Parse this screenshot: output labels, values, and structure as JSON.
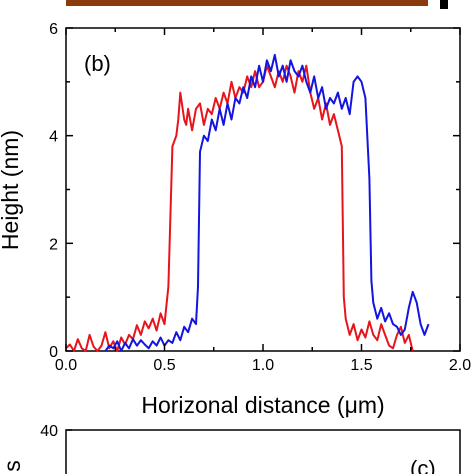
{
  "chart_data": [
    {
      "type": "line",
      "panel_label": "(b)",
      "xlabel": "Horizonal distance (μm)",
      "ylabel": "Height (nm)",
      "xlim": [
        0.0,
        2.0
      ],
      "ylim": [
        0,
        6
      ],
      "x_ticks": [
        "0.0",
        "0.5",
        "1.0",
        "1.5",
        "2.0"
      ],
      "y_ticks": [
        "0",
        "2",
        "4",
        "6"
      ],
      "grid": false,
      "series": [
        {
          "color": "#e8141c",
          "x": [
            0.0,
            0.02,
            0.04,
            0.06,
            0.08,
            0.1,
            0.12,
            0.14,
            0.16,
            0.18,
            0.2,
            0.22,
            0.24,
            0.26,
            0.28,
            0.3,
            0.32,
            0.34,
            0.36,
            0.38,
            0.4,
            0.42,
            0.44,
            0.46,
            0.48,
            0.5,
            0.52,
            0.54,
            0.56,
            0.57,
            0.58,
            0.6,
            0.61,
            0.62,
            0.64,
            0.66,
            0.68,
            0.7,
            0.72,
            0.74,
            0.76,
            0.78,
            0.8,
            0.82,
            0.84,
            0.86,
            0.88,
            0.9,
            0.92,
            0.94,
            0.96,
            0.98,
            1.0,
            1.02,
            1.04,
            1.06,
            1.08,
            1.1,
            1.12,
            1.14,
            1.16,
            1.18,
            1.2,
            1.22,
            1.24,
            1.26,
            1.28,
            1.3,
            1.32,
            1.34,
            1.36,
            1.38,
            1.4,
            1.41,
            1.42,
            1.44,
            1.46,
            1.48,
            1.5,
            1.52,
            1.54,
            1.56,
            1.58,
            1.6,
            1.62,
            1.64,
            1.66,
            1.68,
            1.7,
            1.72,
            1.74,
            1.76
          ],
          "y": [
            0.05,
            0.12,
            0.0,
            0.22,
            0.05,
            0.0,
            0.3,
            0.08,
            0.0,
            0.1,
            0.35,
            0.05,
            0.18,
            0.0,
            0.25,
            0.12,
            0.3,
            0.22,
            0.48,
            0.3,
            0.55,
            0.42,
            0.6,
            0.38,
            0.7,
            0.5,
            1.2,
            3.8,
            4.0,
            4.3,
            4.8,
            4.3,
            4.2,
            4.5,
            4.1,
            4.5,
            4.6,
            4.2,
            4.5,
            4.4,
            4.7,
            4.5,
            4.8,
            4.6,
            5.0,
            4.7,
            4.9,
            4.8,
            5.1,
            4.9,
            5.2,
            4.9,
            5.0,
            5.3,
            5.1,
            4.9,
            5.2,
            5.0,
            5.3,
            5.1,
            4.8,
            5.2,
            5.0,
            5.3,
            4.8,
            4.5,
            4.7,
            4.3,
            4.6,
            4.2,
            4.4,
            4.1,
            3.8,
            1.0,
            0.6,
            0.3,
            0.5,
            0.2,
            0.4,
            0.25,
            0.55,
            0.3,
            0.2,
            0.5,
            0.3,
            0.1,
            0.05,
            0.3,
            0.45,
            0.15,
            0.3,
            0.0
          ]
        },
        {
          "color": "#1414e0",
          "x": [
            0.2,
            0.22,
            0.24,
            0.26,
            0.28,
            0.3,
            0.32,
            0.34,
            0.36,
            0.38,
            0.4,
            0.42,
            0.44,
            0.46,
            0.48,
            0.5,
            0.52,
            0.54,
            0.56,
            0.58,
            0.6,
            0.62,
            0.64,
            0.66,
            0.67,
            0.68,
            0.7,
            0.72,
            0.74,
            0.76,
            0.78,
            0.8,
            0.82,
            0.84,
            0.86,
            0.88,
            0.9,
            0.92,
            0.94,
            0.96,
            0.98,
            1.0,
            1.02,
            1.04,
            1.06,
            1.08,
            1.1,
            1.12,
            1.14,
            1.16,
            1.18,
            1.2,
            1.22,
            1.24,
            1.26,
            1.28,
            1.3,
            1.32,
            1.34,
            1.36,
            1.38,
            1.4,
            1.42,
            1.44,
            1.46,
            1.48,
            1.5,
            1.52,
            1.54,
            1.55,
            1.56,
            1.58,
            1.6,
            1.62,
            1.64,
            1.66,
            1.68,
            1.7,
            1.72,
            1.74,
            1.76,
            1.78,
            1.8,
            1.82,
            1.84
          ],
          "y": [
            0.0,
            0.1,
            0.05,
            0.18,
            0.0,
            0.15,
            0.05,
            0.22,
            0.1,
            0.2,
            0.12,
            0.05,
            0.18,
            0.1,
            0.25,
            0.1,
            0.2,
            0.15,
            0.35,
            0.2,
            0.45,
            0.35,
            0.6,
            0.5,
            1.2,
            3.7,
            4.0,
            3.9,
            4.3,
            4.1,
            4.5,
            4.2,
            4.6,
            4.3,
            4.7,
            4.6,
            4.9,
            4.7,
            5.1,
            4.9,
            5.3,
            5.0,
            5.4,
            5.2,
            5.5,
            5.1,
            5.3,
            5.0,
            5.4,
            5.2,
            5.1,
            5.3,
            5.0,
            4.8,
            5.1,
            4.7,
            4.9,
            4.5,
            4.7,
            4.6,
            4.8,
            4.5,
            4.7,
            4.4,
            5.0,
            5.1,
            5.0,
            4.7,
            3.2,
            1.3,
            0.9,
            0.6,
            0.8,
            0.55,
            0.7,
            0.5,
            0.45,
            0.3,
            0.4,
            0.8,
            1.1,
            0.9,
            0.5,
            0.3,
            0.5
          ]
        }
      ]
    },
    {
      "type": "line",
      "panel_label": "(c)",
      "ylabel_fragment": "s",
      "y_ticks": [
        "40"
      ],
      "series": []
    }
  ]
}
